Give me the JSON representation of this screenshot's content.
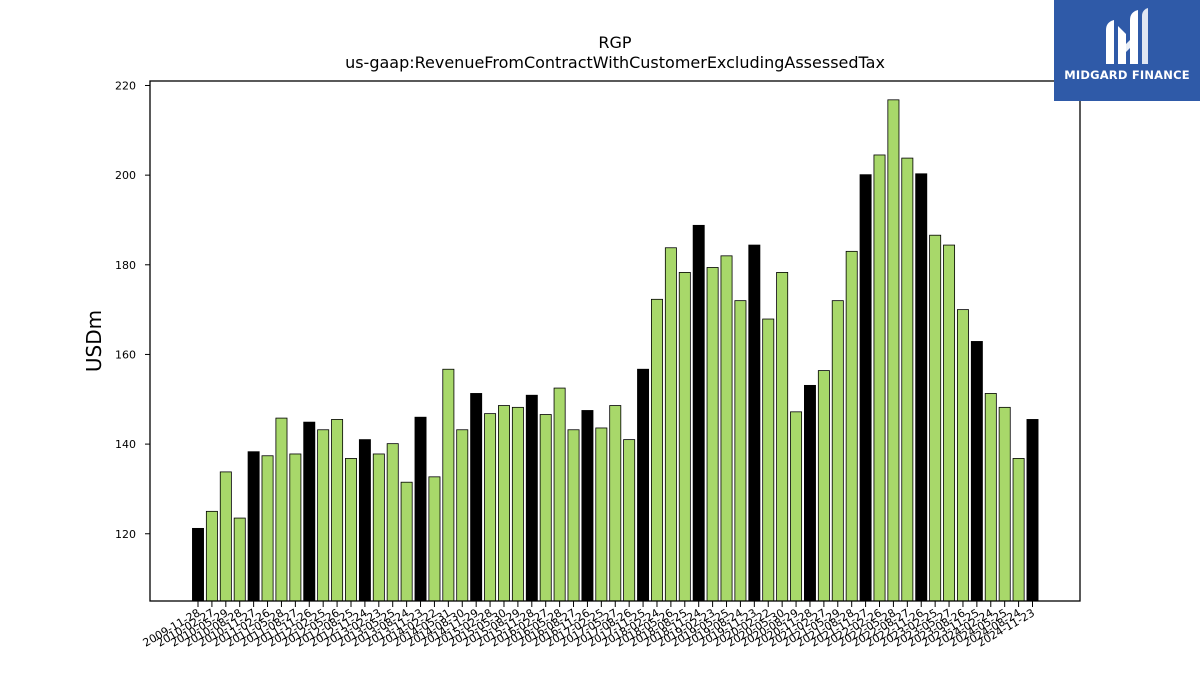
{
  "chart_data": {
    "type": "bar",
    "title": "RGP",
    "subtitle": "us-gaap:RevenueFromContractWithCustomerExcludingAssessedTax",
    "xlabel": "",
    "ylabel": "USDm",
    "ylim": [
      105,
      221
    ],
    "yticks": [
      120,
      140,
      160,
      180,
      200,
      220
    ],
    "grid": false,
    "colors": {
      "annual": "#000000",
      "quarter": "#a8d86a",
      "edge": "#000000"
    },
    "tick_labels": [
      "2009-11-28",
      "2010-02-27",
      "2010-05-29",
      "2010-08-28",
      "2010-11-27",
      "2011-02-26",
      "2011-05-28",
      "2011-08-27",
      "2011-11-26",
      "2012-02-25",
      "2012-05-26",
      "2012-08-25",
      "2012-11-24",
      "2013-02-23",
      "2013-05-25",
      "2013-08-24",
      "2013-11-23",
      "2014-02-22",
      "2014-05-31",
      "2014-08-30",
      "2014-11-29",
      "2015-02-28",
      "2015-05-30",
      "2015-08-29",
      "2015-11-28",
      "2016-02-27",
      "2016-05-28",
      "2016-08-27",
      "2016-11-26",
      "2017-02-25",
      "2017-05-27",
      "2017-08-26",
      "2017-11-25",
      "2018-02-24",
      "2018-05-26",
      "2018-08-25",
      "2018-11-24",
      "2019-02-23",
      "2019-05-25",
      "2019-08-24",
      "2019-11-23",
      "2020-02-22",
      "2020-05-30",
      "2020-08-29",
      "2020-11-28",
      "2021-02-27",
      "2021-05-29",
      "2021-08-28",
      "2021-11-27",
      "2022-02-26",
      "2022-05-28",
      "2022-08-27",
      "2022-11-26",
      "2023-02-25",
      "2023-05-27",
      "2023-08-26",
      "2023-11-25",
      "2024-02-24",
      "2024-05-25",
      "2024-08-24",
      "2024-11-23"
    ],
    "values": [
      121.2,
      125,
      133.8,
      123.5,
      138.3,
      137.4,
      145.8,
      137.8,
      144.9,
      143.2,
      145.5,
      136.8,
      141,
      137.8,
      140.1,
      131.5,
      146,
      132.7,
      156.7,
      143.2,
      151.3,
      146.8,
      148.6,
      148.2,
      150.9,
      146.6,
      152.5,
      143.2,
      147.5,
      143.6,
      148.6,
      141,
      156.7,
      172.3,
      183.8,
      178.3,
      188.8,
      179.4,
      182,
      172,
      184.4,
      167.9,
      178.3,
      147.2,
      153.1,
      156.4,
      172,
      183,
      200.1,
      204.5,
      216.8,
      203.8,
      200.3,
      186.6,
      184.4,
      170,
      162.9,
      151.3,
      148.2,
      136.8,
      145.5
    ],
    "annual_flags": [
      1,
      0,
      0,
      0,
      1,
      0,
      0,
      0,
      1,
      0,
      0,
      0,
      1,
      0,
      0,
      0,
      1,
      0,
      0,
      0,
      1,
      0,
      0,
      0,
      1,
      0,
      0,
      0,
      1,
      0,
      0,
      0,
      1,
      0,
      0,
      0,
      1,
      0,
      0,
      0,
      1,
      0,
      0,
      0,
      1,
      0,
      0,
      0,
      1,
      0,
      0,
      0,
      1,
      0,
      0,
      0,
      1,
      0,
      0,
      0,
      1
    ]
  },
  "logo": {
    "text": "MIDGARD FINANCE",
    "background": "#2f5aa8"
  }
}
